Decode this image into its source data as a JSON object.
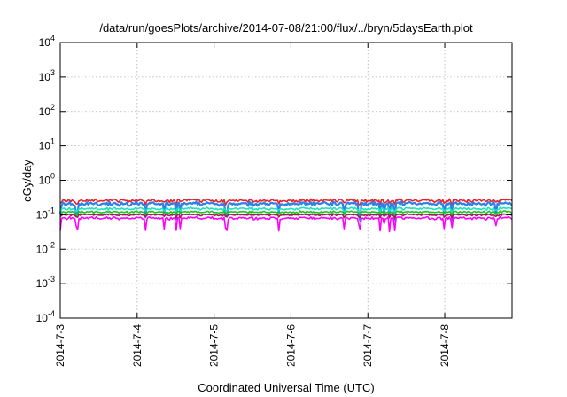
{
  "chart_data": {
    "type": "line",
    "title": "/data/run/goesPlots/archive/2014-07-08/21:00/flux/../bryn/5daysEarth.plot",
    "xlabel": "Coordinated Universal Time (UTC)",
    "ylabel": "cGy/day",
    "y_scale": "log",
    "ylim": [
      0.0001,
      10000
    ],
    "y_ticks": [
      {
        "base": "10",
        "exp": "4",
        "value": 10000
      },
      {
        "base": "10",
        "exp": "3",
        "value": 1000
      },
      {
        "base": "10",
        "exp": "2",
        "value": 100
      },
      {
        "base": "10",
        "exp": "1",
        "value": 10
      },
      {
        "base": "10",
        "exp": "0",
        "value": 1
      },
      {
        "base": "10",
        "exp": "-1",
        "value": 0.1
      },
      {
        "base": "10",
        "exp": "-2",
        "value": 0.01
      },
      {
        "base": "10",
        "exp": "-3",
        "value": 0.001
      },
      {
        "base": "10",
        "exp": "-4",
        "value": 0.0001
      }
    ],
    "xlim": [
      "2014-07-03",
      "2014-07-08T21:00"
    ],
    "x_ticks": [
      {
        "label": "2014-7-3",
        "value": "2014-07-03"
      },
      {
        "label": "2014-7-4",
        "value": "2014-07-04"
      },
      {
        "label": "2014-7-5",
        "value": "2014-07-05"
      },
      {
        "label": "2014-7-6",
        "value": "2014-07-06"
      },
      {
        "label": "2014-7-7",
        "value": "2014-07-07"
      },
      {
        "label": "2014-7-8",
        "value": "2014-07-08"
      }
    ],
    "grid": true,
    "legend": "none",
    "series": [
      {
        "color": "#e8212b",
        "level": 0.26,
        "spread": 0.13,
        "dips": 0.06
      },
      {
        "color": "#2e7fe8",
        "level": 0.21,
        "spread": 0.15,
        "dips": 0.18
      },
      {
        "color": "#19e3c0",
        "level": 0.15,
        "spread": 0.1,
        "dips": 0.05
      },
      {
        "color": "#1ec41e",
        "level": 0.12,
        "spread": 0.09,
        "dips": 0.05
      },
      {
        "color": "#9c1f57",
        "level": 0.1,
        "spread": 0.08,
        "dips": 0.05
      },
      {
        "color": "#ff00ff",
        "level": 0.08,
        "spread": 0.12,
        "dips": 0.16
      }
    ]
  }
}
